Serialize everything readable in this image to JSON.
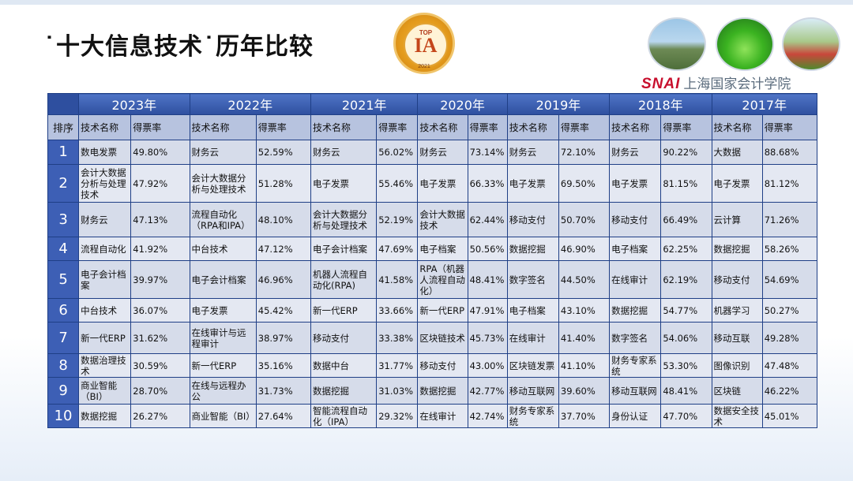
{
  "title": "˙十大信息技术˙历年比较",
  "badge": {
    "top": "TOP",
    "mark": "IA",
    "year": "2021"
  },
  "logo": {
    "brand": "SNAI",
    "name": "上海国家会计学院"
  },
  "table": {
    "rank_header": "排序",
    "name_header": "技术名称",
    "rate_header": "得票率",
    "years": [
      "2023年",
      "2022年",
      "2021年",
      "2020年",
      "2019年",
      "2018年",
      "2017年"
    ],
    "rows": [
      {
        "rank": "1",
        "cells": [
          [
            "数电发票",
            "49.80%"
          ],
          [
            "财务云",
            "52.59%"
          ],
          [
            "财务云",
            "56.02%"
          ],
          [
            "财务云",
            "73.14%"
          ],
          [
            "财务云",
            "72.10%"
          ],
          [
            "财务云",
            "90.22%"
          ],
          [
            "大数据",
            "88.68%"
          ]
        ]
      },
      {
        "rank": "2",
        "cells": [
          [
            "会计大数据分析与处理技术",
            "47.92%"
          ],
          [
            "会计大数据分析与处理技术",
            "51.28%"
          ],
          [
            "电子发票",
            "55.46%"
          ],
          [
            "电子发票",
            "66.33%"
          ],
          [
            "电子发票",
            "69.50%"
          ],
          [
            "电子发票",
            "81.15%"
          ],
          [
            "电子发票",
            "81.12%"
          ]
        ]
      },
      {
        "rank": "3",
        "cells": [
          [
            "财务云",
            "47.13%"
          ],
          [
            "流程自动化（RPA和IPA）",
            "48.10%"
          ],
          [
            "会计大数据分析与处理技术",
            "52.19%"
          ],
          [
            "会计大数据技术",
            "62.44%"
          ],
          [
            "移动支付",
            "50.70%"
          ],
          [
            "移动支付",
            "66.49%"
          ],
          [
            "云计算",
            "71.26%"
          ]
        ]
      },
      {
        "rank": "4",
        "cells": [
          [
            "流程自动化",
            "41.92%"
          ],
          [
            "中台技术",
            "47.12%"
          ],
          [
            "电子会计档案",
            "47.69%"
          ],
          [
            "电子档案",
            "50.56%"
          ],
          [
            "数据挖掘",
            "46.90%"
          ],
          [
            "电子档案",
            "62.25%"
          ],
          [
            "数据挖掘",
            "58.26%"
          ]
        ]
      },
      {
        "rank": "5",
        "cells": [
          [
            "电子会计档案",
            "39.97%"
          ],
          [
            "电子会计档案",
            "46.96%"
          ],
          [
            "机器人流程自动化(RPA)",
            "41.58%"
          ],
          [
            "RPA（机器人流程自动化）",
            "48.41%"
          ],
          [
            "数字签名",
            "44.50%"
          ],
          [
            "在线审计",
            "62.19%"
          ],
          [
            "移动支付",
            "54.69%"
          ]
        ]
      },
      {
        "rank": "6",
        "cells": [
          [
            "中台技术",
            "36.07%"
          ],
          [
            "电子发票",
            "45.42%"
          ],
          [
            "新一代ERP",
            "33.66%"
          ],
          [
            "新一代ERP",
            "47.91%"
          ],
          [
            "电子档案",
            "43.10%"
          ],
          [
            "数据挖掘",
            "54.77%"
          ],
          [
            "机器学习",
            "50.27%"
          ]
        ]
      },
      {
        "rank": "7",
        "cells": [
          [
            "新一代ERP",
            "31.62%"
          ],
          [
            "在线审计与远程审计",
            "38.97%"
          ],
          [
            "移动支付",
            "33.38%"
          ],
          [
            "区块链技术",
            "45.73%"
          ],
          [
            "在线审计",
            "41.40%"
          ],
          [
            "数字签名",
            "54.06%"
          ],
          [
            "移动互联",
            "49.28%"
          ]
        ]
      },
      {
        "rank": "8",
        "cells": [
          [
            "数据治理技术",
            "30.59%"
          ],
          [
            "新一代ERP",
            "35.16%"
          ],
          [
            "数据中台",
            "31.77%"
          ],
          [
            "移动支付",
            "43.00%"
          ],
          [
            "区块链发票",
            "41.10%"
          ],
          [
            "财务专家系统",
            "53.30%"
          ],
          [
            "图像识别",
            "47.48%"
          ]
        ]
      },
      {
        "rank": "9",
        "cells": [
          [
            "商业智能（BI）",
            "28.70%"
          ],
          [
            "在线与远程办公",
            "31.73%"
          ],
          [
            "数据挖掘",
            "31.03%"
          ],
          [
            "数据挖掘",
            "42.77%"
          ],
          [
            "移动互联网",
            "39.60%"
          ],
          [
            "移动互联网",
            "48.41%"
          ],
          [
            "区块链",
            "46.22%"
          ]
        ]
      },
      {
        "rank": "10",
        "cells": [
          [
            "数据挖掘",
            "26.27%"
          ],
          [
            "商业智能（BI）",
            "27.64%"
          ],
          [
            "智能流程自动化（IPA）",
            "29.32%"
          ],
          [
            "在线审计",
            "42.74%"
          ],
          [
            "财务专家系统",
            "37.70%"
          ],
          [
            "身份认证",
            "47.70%"
          ],
          [
            "数据安全技术",
            "45.01%"
          ]
        ]
      }
    ]
  }
}
